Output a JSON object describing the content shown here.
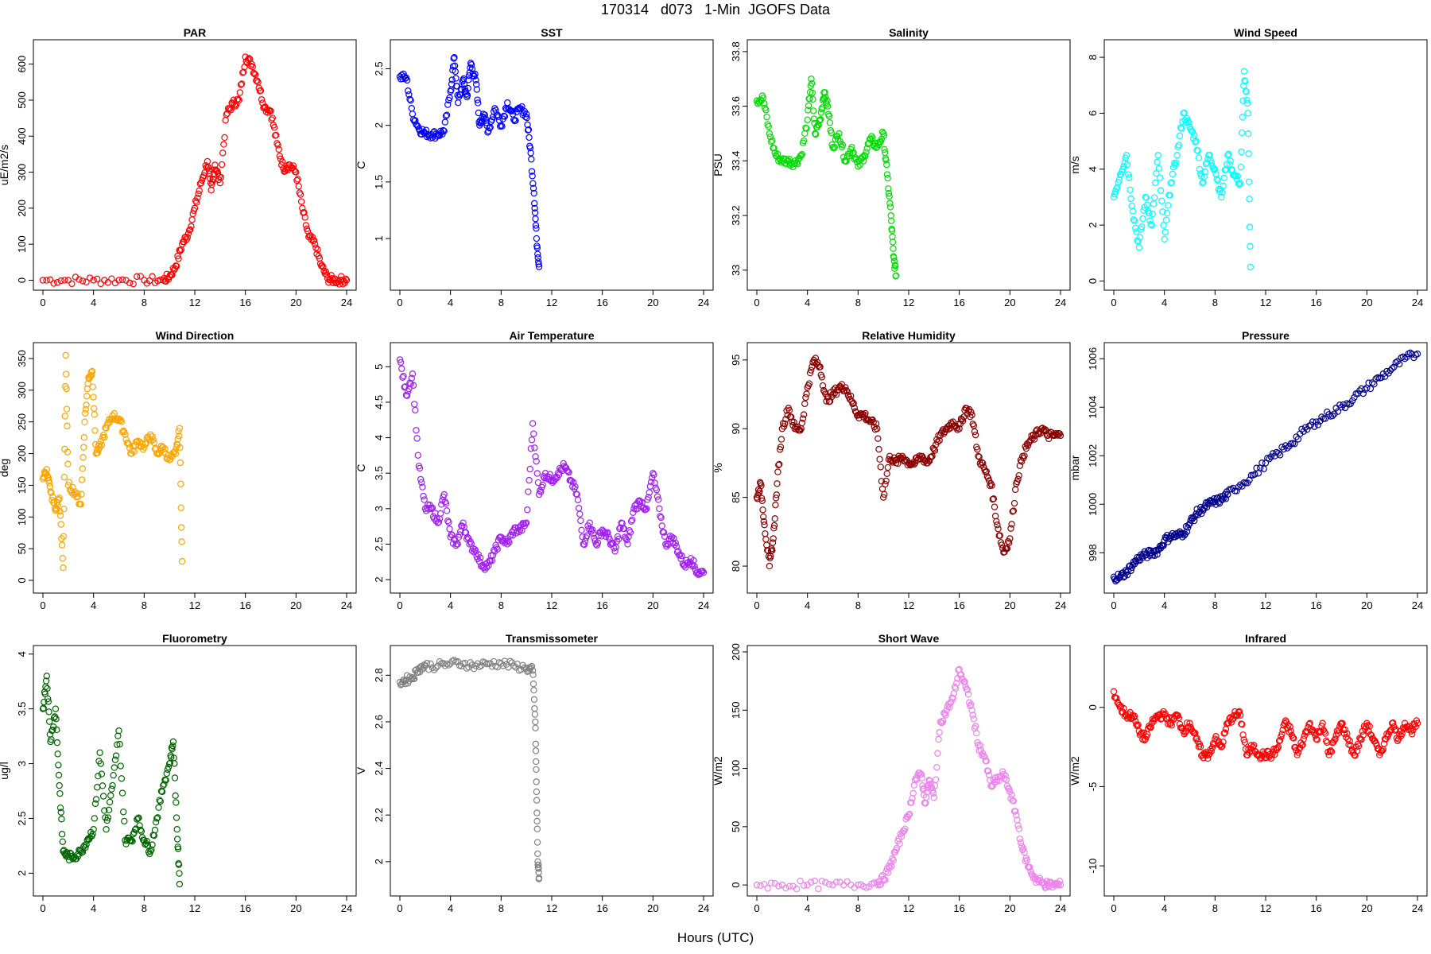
{
  "title": "170314   d073   1-Min  JGOFS Data",
  "xlabel": "Hours (UTC)",
  "chart_data": [
    {
      "type": "scatter",
      "title": "PAR",
      "ylabel": "uE/m2/s",
      "color": "#ff0000",
      "xlim": [
        0,
        24
      ],
      "ylim": [
        -10,
        650
      ],
      "xticks": [
        0,
        4,
        8,
        12,
        16,
        20,
        24
      ],
      "yticks": [
        0,
        100,
        200,
        300,
        400,
        500,
        600
      ],
      "x": [
        0,
        2,
        4,
        6,
        8,
        9.5,
        10,
        10.5,
        11,
        11.5,
        12,
        12.5,
        13,
        13.3,
        13.6,
        14,
        14.5,
        15,
        15.5,
        16,
        16.5,
        17,
        17.5,
        18,
        18.5,
        19,
        19.5,
        20,
        20.5,
        21,
        21.5,
        22,
        22.5,
        23,
        23.5,
        24
      ],
      "y": [
        0,
        0,
        0,
        0,
        0,
        0,
        10,
        40,
        100,
        130,
        200,
        270,
        330,
        250,
        320,
        270,
        460,
        490,
        500,
        620,
        600,
        550,
        480,
        470,
        380,
        310,
        320,
        300,
        200,
        120,
        100,
        40,
        5,
        0,
        0,
        0
      ]
    },
    {
      "type": "scatter",
      "title": "SST",
      "ylabel": "C",
      "color": "#0000ff",
      "xlim": [
        0,
        24
      ],
      "ylim": [
        0.6,
        2.7
      ],
      "xticks": [
        0,
        4,
        8,
        12,
        16,
        20,
        24
      ],
      "yticks": [
        1.0,
        1.5,
        2.0,
        2.5
      ],
      "x": [
        0,
        0.5,
        1,
        1.5,
        2,
        2.5,
        3,
        3.5,
        4,
        4.3,
        4.6,
        5,
        5.3,
        5.6,
        6,
        6.3,
        6.6,
        7,
        7.5,
        8,
        8.5,
        9,
        9.5,
        10,
        10.3,
        10.6,
        10.8,
        11
      ],
      "y": [
        2.43,
        2.42,
        2.1,
        1.97,
        1.93,
        1.92,
        1.92,
        1.95,
        2.3,
        2.6,
        2.2,
        2.4,
        2.25,
        2.55,
        2.4,
        2.0,
        2.1,
        1.95,
        2.15,
        2.0,
        2.2,
        2.05,
        2.15,
        2.1,
        1.8,
        1.4,
        1.0,
        0.75
      ]
    },
    {
      "type": "scatter",
      "title": "Salinity",
      "ylabel": "PSU",
      "color": "#00dd00",
      "xlim": [
        0,
        24
      ],
      "ylim": [
        32.95,
        33.82
      ],
      "xticks": [
        0,
        4,
        8,
        12,
        16,
        20,
        24
      ],
      "yticks": [
        33.0,
        33.2,
        33.4,
        33.6,
        33.8
      ],
      "x": [
        0,
        0.5,
        1,
        1.5,
        2,
        2.5,
        3,
        3.5,
        4,
        4.3,
        4.6,
        5,
        5.3,
        5.6,
        6,
        6.5,
        7,
        7.5,
        8,
        8.5,
        9,
        9.5,
        10,
        10.3,
        10.6,
        10.8,
        11
      ],
      "y": [
        33.62,
        33.63,
        33.5,
        33.42,
        33.4,
        33.4,
        33.39,
        33.42,
        33.55,
        33.7,
        33.5,
        33.55,
        33.65,
        33.6,
        33.45,
        33.5,
        33.4,
        33.45,
        33.38,
        33.42,
        33.48,
        33.45,
        33.5,
        33.35,
        33.2,
        33.05,
        32.98
      ]
    },
    {
      "type": "scatter",
      "title": "Wind Speed",
      "ylabel": "m/s",
      "color": "#00ffff",
      "xlim": [
        0,
        24
      ],
      "ylim": [
        -0.1,
        8.4
      ],
      "xticks": [
        0,
        4,
        8,
        12,
        16,
        20,
        24
      ],
      "yticks": [
        0,
        2,
        4,
        6,
        8
      ],
      "x": [
        0,
        0.5,
        1,
        1.5,
        2,
        2.5,
        3,
        3.5,
        4,
        4.5,
        5,
        5.5,
        6,
        6.5,
        7,
        7.5,
        8,
        8.5,
        9,
        9.5,
        10,
        10.3,
        10.6,
        10.8
      ],
      "y": [
        3.0,
        3.8,
        4.5,
        2.5,
        1.2,
        3.0,
        2.0,
        4.5,
        1.5,
        3.5,
        4.5,
        6.0,
        5.5,
        5.0,
        3.5,
        4.5,
        4.0,
        3.0,
        4.5,
        3.8,
        3.5,
        7.5,
        6.0,
        0.5
      ]
    },
    {
      "type": "scatter",
      "title": "Wind Direction",
      "ylabel": "deg",
      "color": "#ffa500",
      "xlim": [
        0,
        24
      ],
      "ylim": [
        -10,
        365
      ],
      "xticks": [
        0,
        4,
        8,
        12,
        16,
        20,
        24
      ],
      "yticks": [
        0,
        50,
        100,
        150,
        200,
        250,
        300,
        350
      ],
      "x": [
        0,
        0.3,
        0.6,
        1,
        1.3,
        1.6,
        1.8,
        2,
        2.5,
        3,
        3.3,
        3.6,
        3.9,
        4.2,
        4.5,
        5,
        5.5,
        6,
        6.5,
        7,
        7.5,
        8,
        8.5,
        9,
        9.5,
        10,
        10.5,
        10.8,
        11
      ],
      "y": [
        160,
        175,
        140,
        110,
        130,
        20,
        355,
        150,
        140,
        120,
        250,
        320,
        330,
        200,
        210,
        240,
        260,
        255,
        230,
        200,
        220,
        210,
        230,
        200,
        210,
        190,
        200,
        240,
        30
      ]
    },
    {
      "type": "scatter",
      "title": "Air Temperature",
      "ylabel": "C",
      "color": "#a020f0",
      "xlim": [
        0,
        24
      ],
      "ylim": [
        1.9,
        5.25
      ],
      "xticks": [
        0,
        4,
        8,
        12,
        16,
        20,
        24
      ],
      "yticks": [
        2.0,
        2.5,
        3.0,
        3.5,
        4.0,
        4.5,
        5.0
      ],
      "x": [
        0,
        0.5,
        1,
        1.5,
        2,
        2.5,
        3,
        3.5,
        4,
        4.5,
        5,
        5.5,
        6,
        6.5,
        7,
        7.5,
        8,
        8.5,
        9,
        9.5,
        10,
        10.5,
        11,
        11.5,
        12,
        12.5,
        13,
        13.5,
        14,
        14.5,
        15,
        15.5,
        16,
        16.5,
        17,
        17.5,
        18,
        18.5,
        19,
        19.5,
        20,
        20.5,
        21,
        21.5,
        22,
        22.5,
        23,
        23.5,
        24
      ],
      "y": [
        5.1,
        4.6,
        4.9,
        3.6,
        3.0,
        3.0,
        2.8,
        3.2,
        2.6,
        2.5,
        2.8,
        2.5,
        2.4,
        2.2,
        2.2,
        2.4,
        2.6,
        2.5,
        2.7,
        2.7,
        2.8,
        4.2,
        3.2,
        3.5,
        3.4,
        3.5,
        3.6,
        3.4,
        3.2,
        2.5,
        2.8,
        2.5,
        2.7,
        2.6,
        2.4,
        2.8,
        2.5,
        3.0,
        3.1,
        3.0,
        3.5,
        3.0,
        2.5,
        2.6,
        2.4,
        2.2,
        2.3,
        2.1,
        2.1
      ]
    },
    {
      "type": "scatter",
      "title": "Relative Humidity",
      "ylabel": "%",
      "color": "#8b0000",
      "xlim": [
        0,
        24
      ],
      "ylim": [
        78.5,
        95.8
      ],
      "xticks": [
        0,
        4,
        8,
        12,
        16,
        20,
        24
      ],
      "yticks": [
        80,
        85,
        90,
        95
      ],
      "x": [
        0,
        0.3,
        0.6,
        1,
        1.3,
        1.6,
        2,
        2.5,
        3,
        3.5,
        4,
        4.5,
        5,
        5.5,
        6,
        6.5,
        7,
        7.5,
        8,
        8.5,
        9,
        9.5,
        10,
        10.5,
        11,
        11.5,
        12,
        12.5,
        13,
        13.5,
        14,
        14.5,
        15,
        15.5,
        16,
        16.5,
        17,
        17.5,
        18,
        18.5,
        19,
        19.5,
        20,
        20.5,
        21,
        21.5,
        22,
        22.5,
        23,
        23.5,
        24
      ],
      "y": [
        85,
        86,
        83,
        80,
        82,
        86,
        90,
        91.5,
        90,
        90,
        93,
        95,
        94.5,
        92,
        92.5,
        93,
        93,
        92,
        91,
        91,
        90.5,
        90,
        85,
        88,
        87.5,
        88,
        87.5,
        87.5,
        88,
        87.5,
        88.5,
        89.5,
        90,
        90.5,
        90,
        91.5,
        91,
        88,
        87,
        86,
        83,
        81,
        82,
        86,
        88,
        89,
        89.5,
        90,
        89.5,
        89.5,
        89.5
      ]
    },
    {
      "type": "scatter",
      "title": "Pressure",
      "ylabel": "mbar",
      "color": "#00008b",
      "xlim": [
        0,
        24
      ],
      "ylim": [
        996.6,
        1006.4
      ],
      "xticks": [
        0,
        4,
        8,
        12,
        16,
        20,
        24
      ],
      "yticks": [
        998,
        1000,
        1002,
        1004,
        1006
      ],
      "x": [
        0,
        0.5,
        1,
        1.5,
        2,
        2.5,
        3,
        3.5,
        4,
        4.5,
        5,
        5.5,
        6,
        6.5,
        7,
        7.5,
        8,
        8.5,
        9,
        10,
        11,
        12,
        13,
        14,
        15,
        16,
        17,
        18,
        19,
        20,
        21,
        22,
        23,
        24
      ],
      "y": [
        997.0,
        997.0,
        997.2,
        997.5,
        997.8,
        997.9,
        998.0,
        998.1,
        998.5,
        998.7,
        998.7,
        998.8,
        999.2,
        999.6,
        999.8,
        1000.0,
        1000.1,
        1000.2,
        1000.4,
        1000.8,
        1001.2,
        1001.7,
        1002.1,
        1002.5,
        1003.0,
        1003.4,
        1003.7,
        1004.0,
        1004.4,
        1004.8,
        1005.2,
        1005.6,
        1006.0,
        1006.2
      ]
    },
    {
      "type": "scatter",
      "title": "Fluorometry",
      "ylabel": "ug/l",
      "color": "#006400",
      "xlim": [
        0,
        24
      ],
      "ylim": [
        1.85,
        4.02
      ],
      "xticks": [
        0,
        4,
        8,
        12,
        16,
        20,
        24
      ],
      "yticks": [
        2.0,
        2.5,
        3.0,
        3.5,
        4.0
      ],
      "x": [
        0,
        0.3,
        0.6,
        1,
        1.3,
        1.6,
        2,
        2.5,
        3,
        3.5,
        4,
        4.5,
        5,
        5.5,
        6,
        6.5,
        7,
        7.5,
        8,
        8.5,
        9,
        9.5,
        10,
        10.3,
        10.6,
        10.8
      ],
      "y": [
        3.5,
        3.8,
        3.2,
        3.5,
        2.8,
        2.2,
        2.15,
        2.15,
        2.2,
        2.3,
        2.4,
        3.1,
        2.4,
        2.8,
        3.3,
        2.3,
        2.3,
        2.5,
        2.3,
        2.2,
        2.5,
        2.8,
        3.0,
        3.2,
        2.4,
        1.9
      ]
    },
    {
      "type": "scatter",
      "title": "Transmissometer",
      "ylabel": "V",
      "color": "#808080",
      "xlim": [
        0,
        24
      ],
      "ylim": [
        1.88,
        2.9
      ],
      "xticks": [
        0,
        4,
        8,
        12,
        16,
        20,
        24
      ],
      "yticks": [
        2.0,
        2.2,
        2.4,
        2.6,
        2.8
      ],
      "x": [
        0,
        0.5,
        1,
        1.5,
        2,
        3,
        4,
        5,
        6,
        7,
        8,
        9,
        10,
        10.5,
        10.7,
        10.8,
        10.9,
        11
      ],
      "y": [
        2.77,
        2.78,
        2.79,
        2.83,
        2.84,
        2.84,
        2.85,
        2.85,
        2.84,
        2.85,
        2.85,
        2.84,
        2.83,
        2.82,
        2.6,
        2.3,
        2.0,
        1.93
      ]
    },
    {
      "type": "scatter",
      "title": "Short Wave",
      "ylabel": "W/m2",
      "color": "#ee82ee",
      "xlim": [
        0,
        24
      ],
      "ylim": [
        -4,
        200
      ],
      "xticks": [
        0,
        4,
        8,
        12,
        16,
        20,
        24
      ],
      "yticks": [
        0,
        50,
        100,
        150,
        200
      ],
      "x": [
        0,
        2,
        4,
        6,
        8,
        9.5,
        10,
        10.5,
        11,
        11.5,
        12,
        12.5,
        13,
        13.3,
        13.6,
        14,
        14.5,
        15,
        15.5,
        16,
        16.5,
        17,
        17.5,
        18,
        18.5,
        19,
        19.5,
        20,
        20.5,
        21,
        21.5,
        22,
        22.5,
        23,
        23.5,
        24
      ],
      "y": [
        0,
        0,
        0,
        0,
        0,
        2,
        5,
        15,
        30,
        45,
        60,
        90,
        95,
        70,
        90,
        75,
        140,
        150,
        160,
        185,
        170,
        150,
        120,
        110,
        85,
        90,
        95,
        80,
        60,
        30,
        15,
        5,
        2,
        0,
        0,
        0
      ]
    },
    {
      "type": "scatter",
      "title": "Infrared",
      "ylabel": "W/m2",
      "color": "#ff0000",
      "xlim": [
        0,
        24
      ],
      "ylim": [
        -11.5,
        3.5
      ],
      "xticks": [
        0,
        4,
        8,
        12,
        16,
        20,
        24
      ],
      "yticks": [
        -10,
        -5,
        0
      ],
      "x": [
        0,
        0.5,
        1,
        1.5,
        2,
        2.5,
        3,
        3.5,
        4,
        4.5,
        5,
        5.5,
        6,
        6.5,
        7,
        7.5,
        8,
        8.5,
        9,
        9.5,
        10,
        10.5,
        11,
        11.5,
        12,
        12.5,
        13,
        13.5,
        14,
        14.5,
        15,
        15.5,
        16,
        16.5,
        17,
        17.5,
        18,
        18.5,
        19,
        19.5,
        20,
        20.5,
        21,
        21.5,
        22,
        22.5,
        23,
        23.5,
        24
      ],
      "y": [
        1,
        0,
        -0.5,
        -0.5,
        -1.5,
        -2,
        -1,
        -0.5,
        -0.5,
        -1,
        -0.5,
        -1.5,
        -1,
        -2,
        -3,
        -3,
        -2,
        -2.5,
        -1,
        -0.5,
        -0.5,
        -3,
        -2.5,
        -3,
        -3,
        -3,
        -2.5,
        -1,
        -1.5,
        -3,
        -2,
        -1,
        -2,
        -1,
        -3,
        -2,
        -1,
        -2,
        -3,
        -2,
        -1,
        -2,
        -3,
        -2,
        -1,
        -2,
        -1,
        -1.5,
        -1
      ]
    }
  ]
}
